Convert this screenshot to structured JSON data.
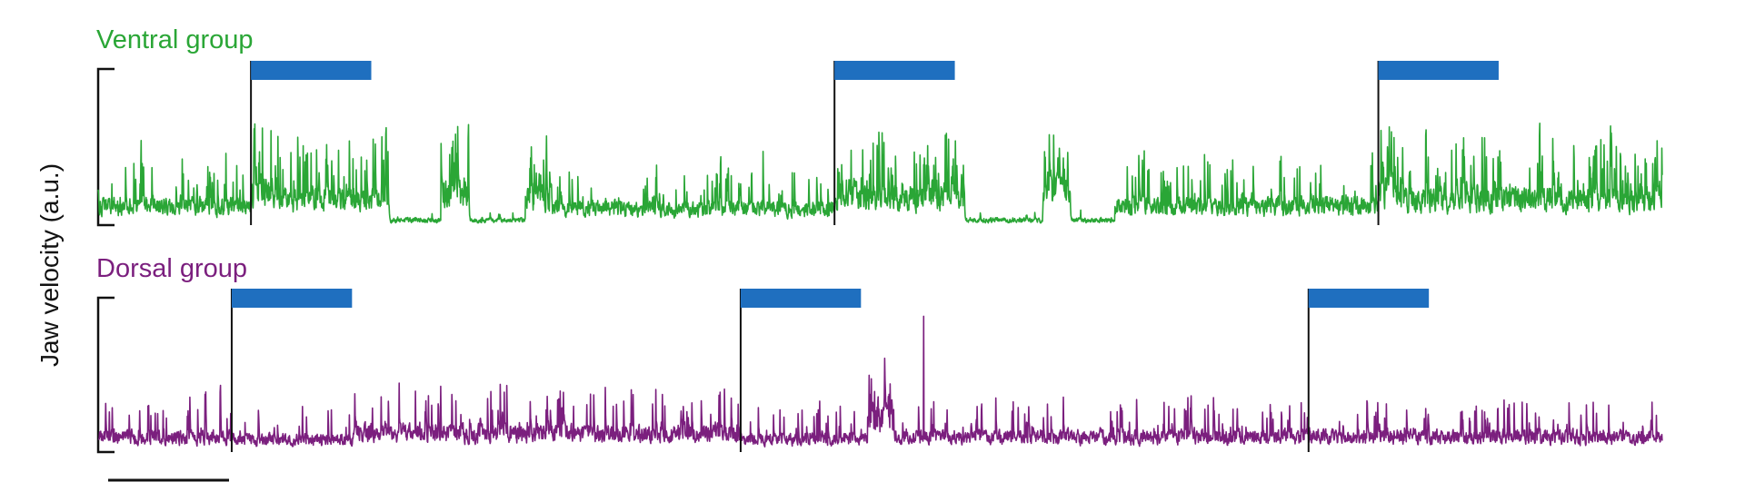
{
  "chart_data": {
    "type": "line",
    "ylabel": "Jaw velocity (a.u.)",
    "xlabel": "",
    "x_range": [
      0,
      1300
    ],
    "ylim": [
      0,
      1
    ],
    "grid": false,
    "colors": {
      "ventral": "#2aa636",
      "dorsal": "#7b1f7e",
      "stimulus_bar": "#1f6fbf",
      "axis": "#111111"
    },
    "panels": [
      {
        "title": "Ventral group",
        "color": "#2aa636",
        "stimulus_onsets": [
          127,
          612,
          1064
        ],
        "stimulus_duration": 100,
        "segments": [
          {
            "start": 0,
            "end": 127,
            "mean": 0.15,
            "spike_prob": 0.08,
            "spike_amp": 0.5
          },
          {
            "start": 127,
            "end": 145,
            "mean": 0.26,
            "spike_prob": 0.2,
            "spike_amp": 0.75
          },
          {
            "start": 145,
            "end": 242,
            "mean": 0.2,
            "spike_prob": 0.14,
            "spike_amp": 0.6
          },
          {
            "start": 242,
            "end": 285,
            "mean": 0.04,
            "spike_prob": 0.03,
            "spike_amp": 0.1
          },
          {
            "start": 285,
            "end": 308,
            "mean": 0.24,
            "spike_prob": 0.2,
            "spike_amp": 0.65
          },
          {
            "start": 308,
            "end": 355,
            "mean": 0.04,
            "spike_prob": 0.03,
            "spike_amp": 0.1
          },
          {
            "start": 355,
            "end": 377,
            "mean": 0.22,
            "spike_prob": 0.2,
            "spike_amp": 0.6
          },
          {
            "start": 377,
            "end": 612,
            "mean": 0.13,
            "spike_prob": 0.09,
            "spike_amp": 0.4
          },
          {
            "start": 612,
            "end": 630,
            "mean": 0.26,
            "spike_prob": 0.2,
            "spike_amp": 0.7
          },
          {
            "start": 630,
            "end": 720,
            "mean": 0.22,
            "spike_prob": 0.15,
            "spike_amp": 0.65
          },
          {
            "start": 720,
            "end": 785,
            "mean": 0.04,
            "spike_prob": 0.03,
            "spike_amp": 0.1
          },
          {
            "start": 785,
            "end": 808,
            "mean": 0.28,
            "spike_prob": 0.2,
            "spike_amp": 0.6
          },
          {
            "start": 808,
            "end": 845,
            "mean": 0.04,
            "spike_prob": 0.03,
            "spike_amp": 0.1
          },
          {
            "start": 845,
            "end": 1064,
            "mean": 0.15,
            "spike_prob": 0.1,
            "spike_amp": 0.5
          },
          {
            "start": 1064,
            "end": 1080,
            "mean": 0.28,
            "spike_prob": 0.2,
            "spike_amp": 0.8
          },
          {
            "start": 1080,
            "end": 1300,
            "mean": 0.2,
            "spike_prob": 0.13,
            "spike_amp": 0.62
          }
        ]
      },
      {
        "title": "Dorsal group",
        "color": "#7b1f7e",
        "stimulus_onsets": [
          111,
          534,
          1006
        ],
        "stimulus_duration": 100,
        "segments": [
          {
            "start": 0,
            "end": 111,
            "mean": 0.12,
            "spike_prob": 0.07,
            "spike_amp": 0.45
          },
          {
            "start": 111,
            "end": 212,
            "mean": 0.1,
            "spike_prob": 0.06,
            "spike_amp": 0.35
          },
          {
            "start": 212,
            "end": 534,
            "mean": 0.15,
            "spike_prob": 0.09,
            "spike_amp": 0.5
          },
          {
            "start": 534,
            "end": 640,
            "mean": 0.1,
            "spike_prob": 0.06,
            "spike_amp": 0.35
          },
          {
            "start": 640,
            "end": 660,
            "mean": 0.28,
            "spike_prob": 0.18,
            "spike_amp": 0.5
          },
          {
            "start": 660,
            "end": 1006,
            "mean": 0.12,
            "spike_prob": 0.08,
            "spike_amp": 0.4
          },
          {
            "start": 1006,
            "end": 1300,
            "mean": 0.12,
            "spike_prob": 0.08,
            "spike_amp": 0.4
          }
        ],
        "peaks": [
          {
            "x": 686,
            "y": 0.88
          }
        ]
      }
    ]
  }
}
